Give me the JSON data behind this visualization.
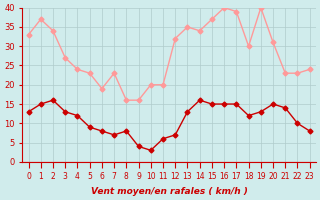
{
  "hours": [
    0,
    1,
    2,
    3,
    4,
    5,
    6,
    7,
    8,
    9,
    10,
    11,
    12,
    13,
    14,
    15,
    16,
    17,
    18,
    19,
    20,
    21,
    22,
    23
  ],
  "vent_moyen": [
    13,
    15,
    16,
    13,
    12,
    9,
    8,
    7,
    8,
    4,
    3,
    6,
    7,
    13,
    16,
    15,
    15,
    15,
    12,
    13,
    15,
    14,
    10,
    8
  ],
  "en_rafales": [
    33,
    37,
    34,
    27,
    24,
    23,
    19,
    23,
    16,
    16,
    20,
    20,
    32,
    35,
    34,
    37,
    40,
    39,
    30,
    40,
    31,
    23,
    23,
    24
  ],
  "color_moyen": "#cc0000",
  "color_rafales": "#ff9999",
  "bg_color": "#d0ecec",
  "grid_color": "#b0cccc",
  "xlabel": "Vent moyen/en rafales ( km/h )",
  "ylim": [
    0,
    40
  ],
  "yticks": [
    0,
    5,
    10,
    15,
    20,
    25,
    30,
    35,
    40
  ]
}
